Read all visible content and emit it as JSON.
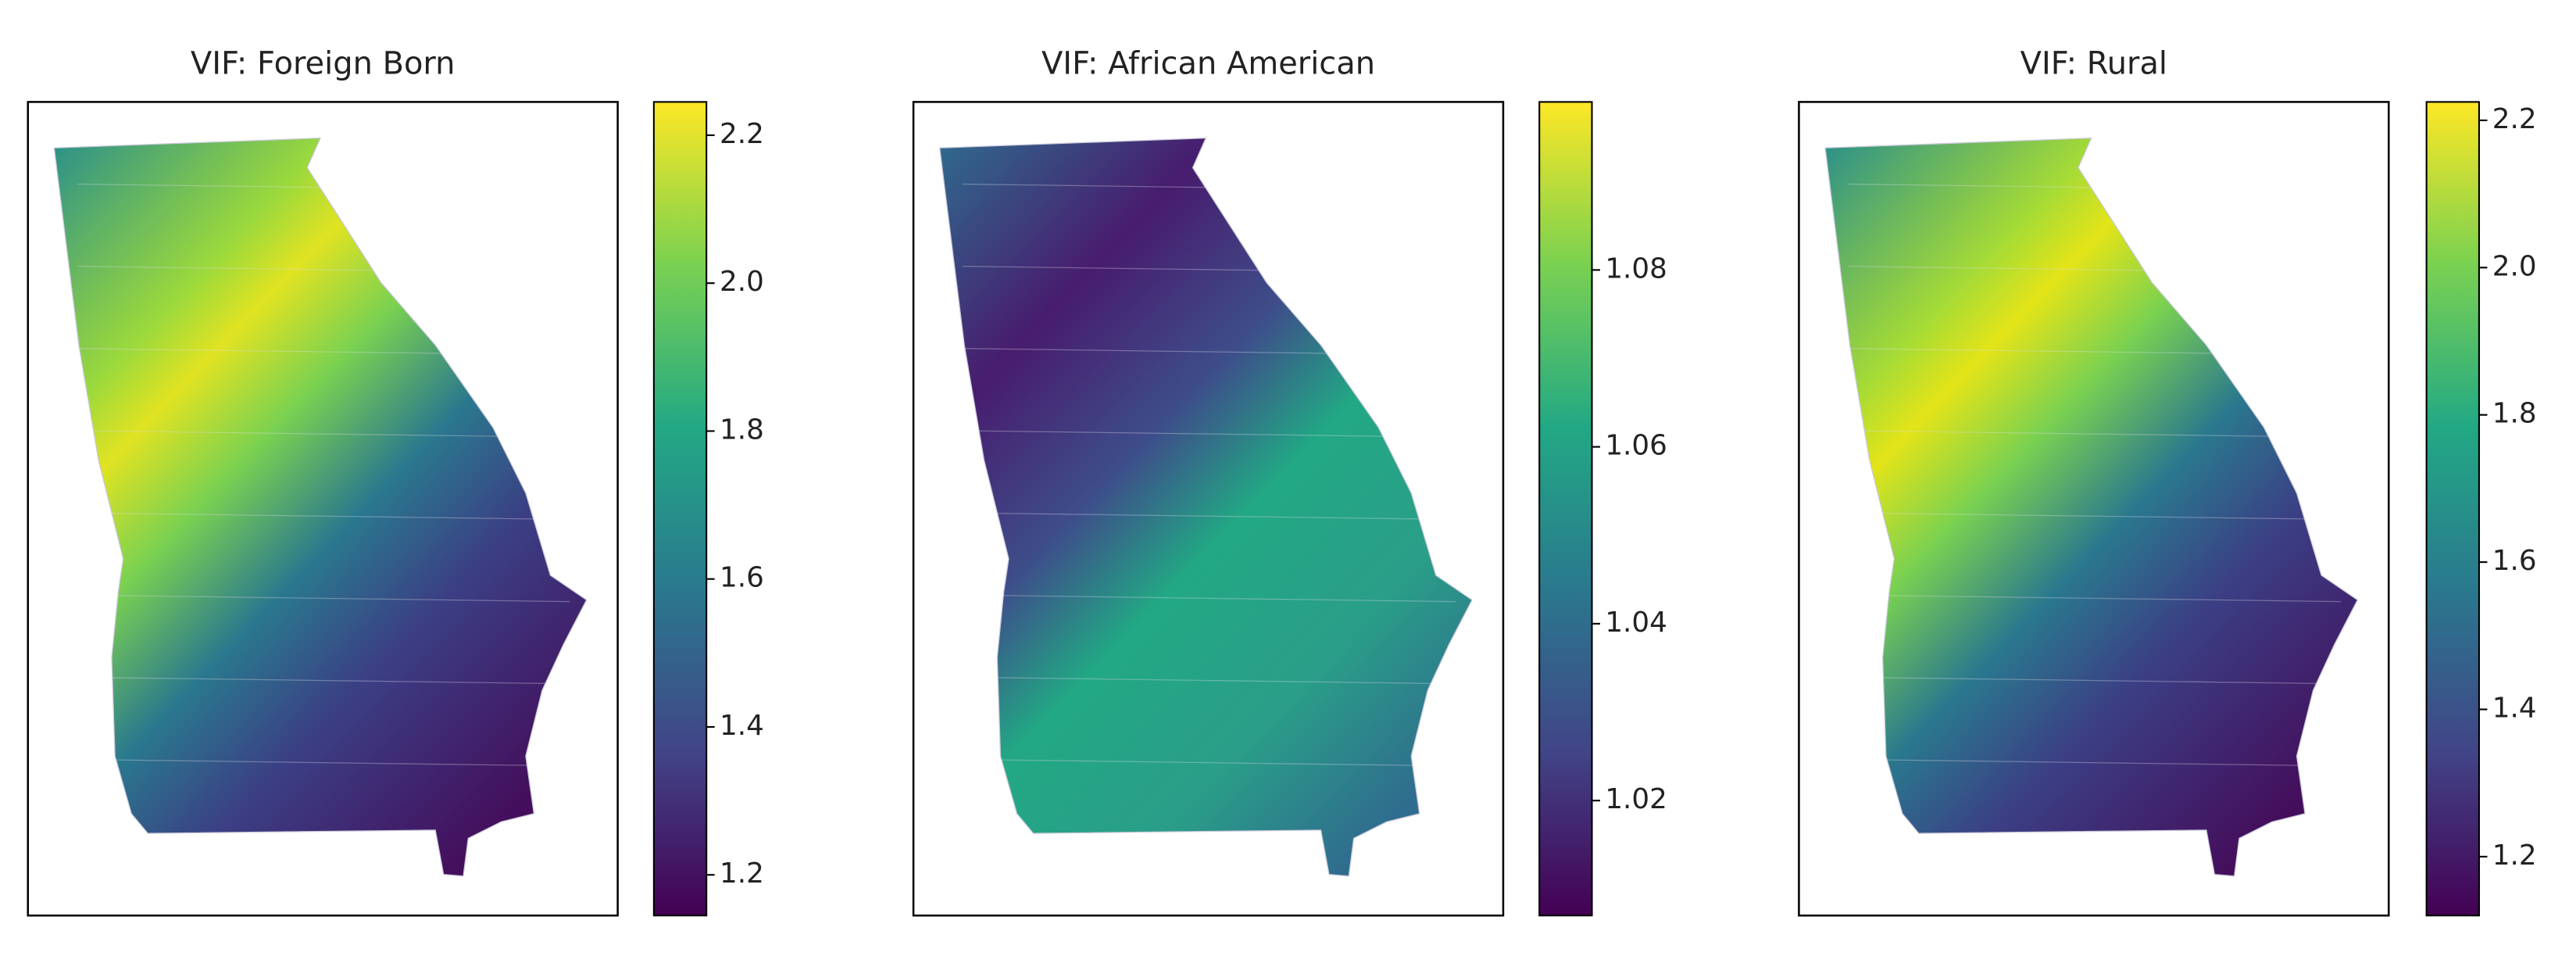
{
  "chart_data": [
    {
      "type": "choropleth",
      "title": "VIF: Foreign Born",
      "cmap": "viridis",
      "colorbar": {
        "lim": [
          1.145,
          2.245
        ],
        "ticks": [
          {
            "value": 1.2,
            "label": "1.2"
          },
          {
            "value": 1.4,
            "label": "1.4"
          },
          {
            "value": 1.6,
            "label": "1.6"
          },
          {
            "value": 1.8,
            "label": "1.8"
          },
          {
            "value": 2,
            "label": "2.0"
          },
          {
            "value": 2.2,
            "label": "2.2"
          }
        ]
      }
    },
    {
      "type": "choropleth",
      "title": "VIF: African American",
      "cmap": "viridis",
      "colorbar": {
        "lim": [
          1.007,
          1.099
        ],
        "ticks": [
          1.02,
          1.04,
          1.06,
          1.08
        ]
      }
    },
    {
      "type": "choropleth",
      "title": "VIF: Rural",
      "cmap": "viridis",
      "colorbar": {
        "lim": [
          1.12,
          2.225
        ],
        "ticks": [
          {
            "value": 1.2,
            "label": "1.2"
          },
          {
            "value": 1.4,
            "label": "1.4"
          },
          {
            "value": 1.6,
            "label": "1.6"
          },
          {
            "value": 1.8,
            "label": "1.8"
          },
          {
            "value": 2,
            "label": "2.0"
          },
          {
            "value": 2.2,
            "label": "2.2"
          }
        ]
      }
    }
  ]
}
